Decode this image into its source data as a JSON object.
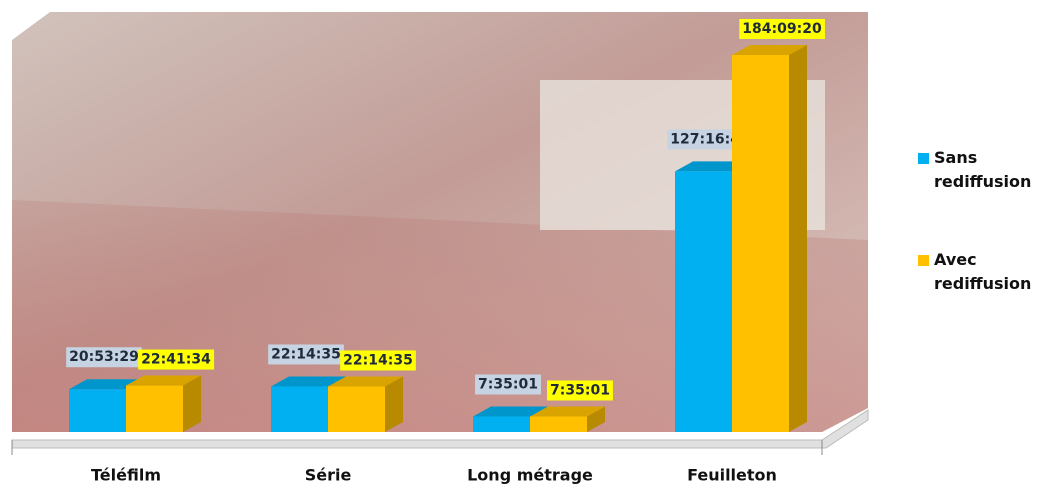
{
  "chart_data": {
    "type": "bar3d",
    "categories": [
      "Téléfilm",
      "Série",
      "Long métrage",
      "Feuilleton"
    ],
    "series": [
      {
        "name": "Sans rediffusion",
        "color": "#00b0f0",
        "label_color": "#c6d3e3",
        "values": [
          20.891389,
          22.243056,
          7.583611,
          127.279444
        ],
        "value_labels": [
          "20:53:29",
          "22:14:35",
          "7:35:01",
          "127:16:46"
        ]
      },
      {
        "name": "Avec rediffusion",
        "color": "#ffc000",
        "label_color": "#ffff00",
        "values": [
          22.692778,
          22.243056,
          7.583611,
          184.155556
        ],
        "value_labels": [
          "22:41:34",
          "22:14:35",
          "7:35:01",
          "184:09:20"
        ]
      }
    ],
    "legend": "right"
  }
}
